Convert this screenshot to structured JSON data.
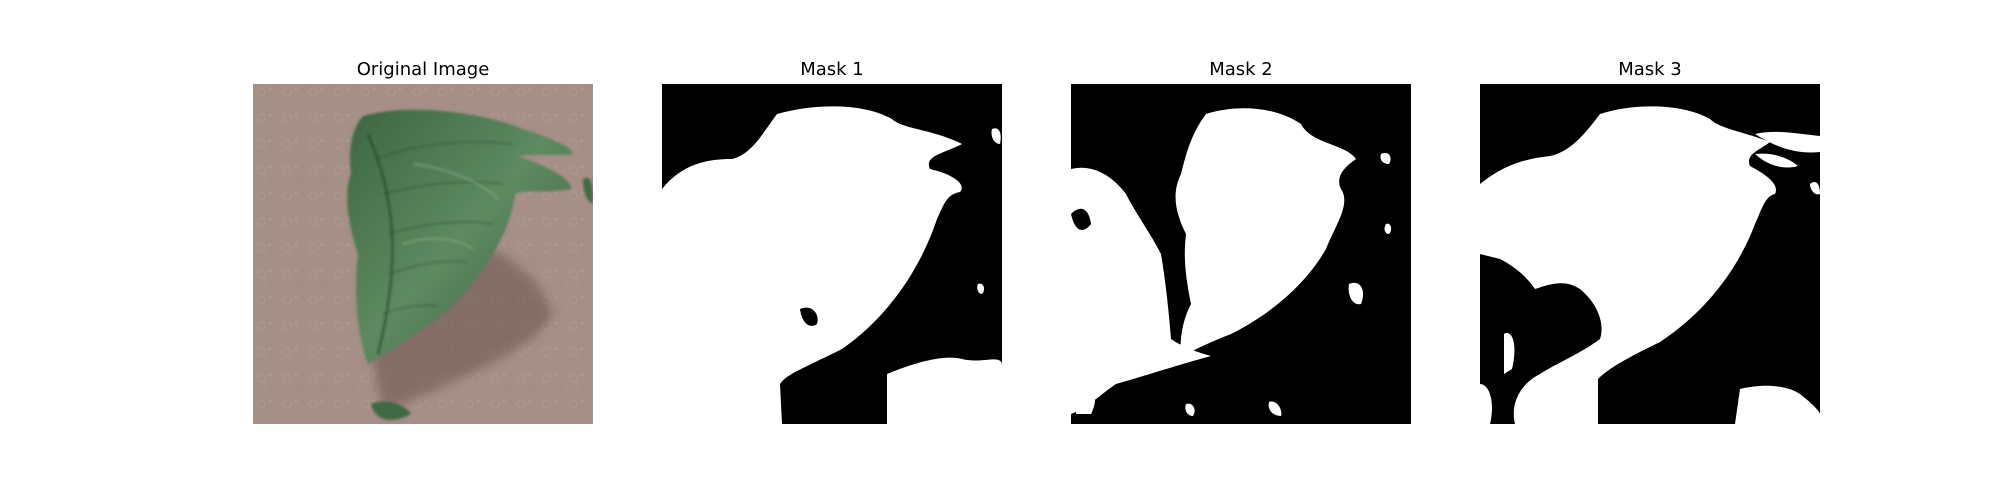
{
  "panels": [
    {
      "title": "Original Image",
      "kind": "photo",
      "subject": "leaf"
    },
    {
      "title": "Mask 1",
      "kind": "mask",
      "background_color": "#000000",
      "foreground_color": "#ffffff"
    },
    {
      "title": "Mask 2",
      "kind": "mask",
      "background_color": "#000000",
      "foreground_color": "#ffffff"
    },
    {
      "title": "Mask 3",
      "kind": "mask",
      "background_color": "#000000",
      "foreground_color": "#ffffff"
    }
  ],
  "colors": {
    "background": "#a69088",
    "leaf_dark": "#2f4f33",
    "leaf_light": "#6f9670",
    "shadow": "#6b534e"
  }
}
